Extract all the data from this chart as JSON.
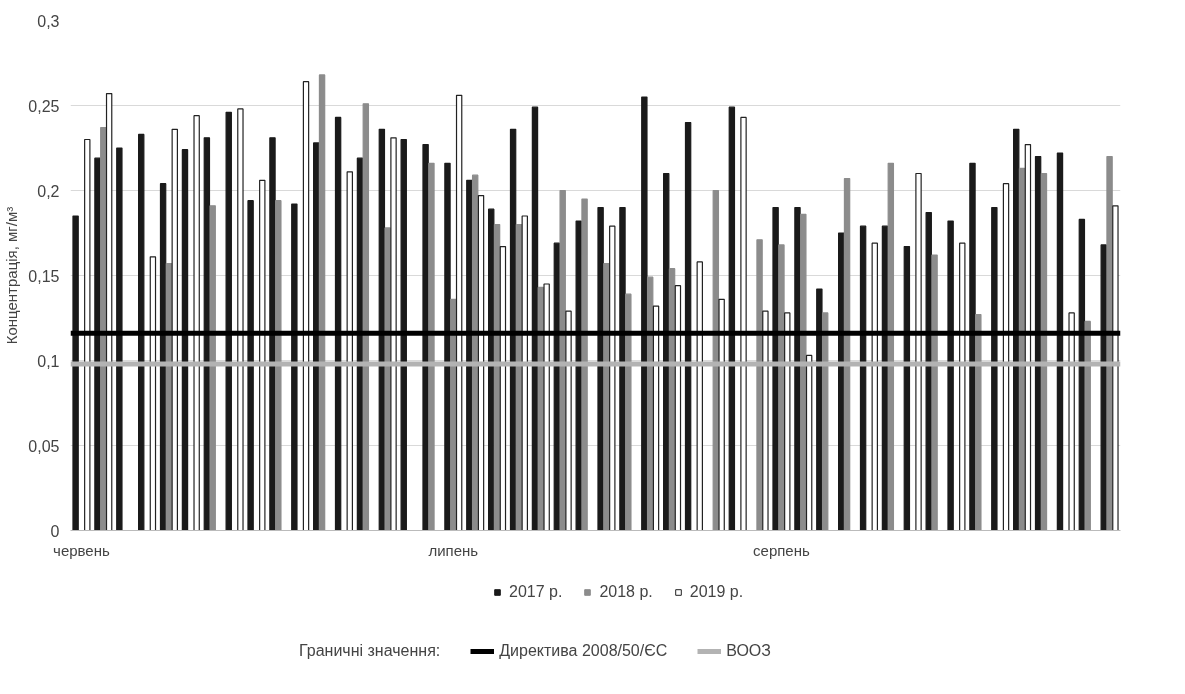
{
  "chart_data": {
    "type": "bar",
    "ylabel": "Концентрація, мг/м³",
    "categories": [
      "червень",
      null,
      null,
      null,
      null,
      null,
      null,
      null,
      null,
      null,
      null,
      null,
      null,
      null,
      null,
      null,
      null,
      "липень",
      null,
      null,
      null,
      null,
      null,
      null,
      null,
      null,
      null,
      null,
      null,
      null,
      null,
      null,
      "серпень",
      null,
      null,
      null,
      null,
      null,
      null,
      null,
      null,
      null,
      null,
      null,
      null,
      null,
      null,
      null
    ],
    "series": [
      {
        "name": "2017 р.",
        "color": "#1a1a1a",
        "values": [
          0.185,
          0.219,
          0.225,
          0.233,
          0.204,
          0.224,
          0.231,
          0.246,
          0.194,
          0.231,
          0.192,
          0.228,
          0.243,
          0.219,
          0.236,
          0.23,
          0.227,
          0.216,
          0.206,
          0.189,
          0.236,
          0.249,
          0.169,
          0.182,
          0.19,
          0.19,
          0.255,
          0.21,
          0.24,
          null,
          0.249,
          null,
          0.19,
          0.19,
          0.142,
          0.175,
          0.179,
          0.179,
          0.167,
          0.187,
          0.182,
          0.216,
          0.19,
          0.236,
          0.22,
          0.222,
          0.183,
          0.168
        ]
      },
      {
        "name": "2018 р.",
        "color": "#8c8c8c",
        "values": [
          null,
          0.237,
          null,
          null,
          0.157,
          null,
          0.191,
          null,
          null,
          0.194,
          null,
          0.268,
          null,
          0.251,
          0.178,
          null,
          0.216,
          0.136,
          0.209,
          0.18,
          0.18,
          0.143,
          0.2,
          0.195,
          0.157,
          0.139,
          0.149,
          0.154,
          null,
          0.2,
          null,
          0.171,
          0.168,
          0.186,
          0.128,
          0.207,
          null,
          0.216,
          null,
          0.162,
          null,
          0.127,
          null,
          0.213,
          0.21,
          null,
          0.123,
          0.22
        ]
      },
      {
        "name": "2019 р.",
        "color": "#ffffff",
        "values": [
          0.23,
          0.257,
          null,
          0.161,
          0.236,
          0.244,
          null,
          0.248,
          0.206,
          null,
          0.264,
          null,
          0.211,
          null,
          0.231,
          null,
          null,
          0.256,
          0.197,
          0.167,
          0.185,
          0.145,
          0.129,
          null,
          0.179,
          null,
          0.132,
          0.144,
          0.158,
          0.136,
          0.243,
          0.129,
          0.128,
          0.103,
          null,
          null,
          0.169,
          null,
          0.21,
          null,
          0.169,
          null,
          0.204,
          0.227,
          null,
          0.128,
          null,
          0.191
        ]
      }
    ],
    "ylim": [
      0,
      0.3
    ],
    "yticks": [
      0,
      {
        "value": 0.05,
        "label": "0,05"
      },
      {
        "value": 0.1,
        "label": "0,1"
      },
      {
        "value": 0.15,
        "label": "0,15"
      },
      {
        "value": 0.2,
        "label": "0,2"
      },
      {
        "value": 0.25,
        "label": "0,25"
      },
      {
        "value": 0.3,
        "label": "0,3"
      }
    ],
    "grid": "y",
    "legend": "bottom",
    "legend_title": "Граничні значення:",
    "ref_lines": [
      {
        "axis": "y",
        "value": 0.116,
        "label": "Директива 2008/50/ЄС",
        "color": "#000000"
      },
      {
        "axis": "y",
        "value": 0.098,
        "label": "ВООЗ",
        "color": "#b3b3b3"
      }
    ]
  }
}
